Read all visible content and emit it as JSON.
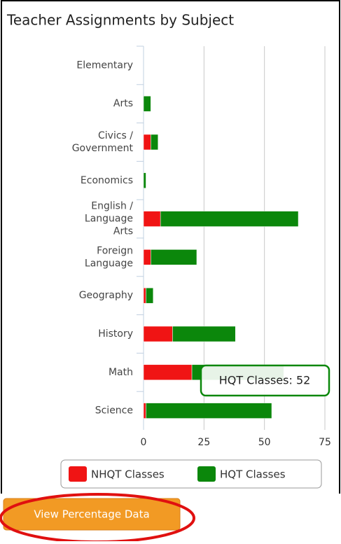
{
  "chart_data": {
    "type": "bar",
    "orientation": "horizontal",
    "stacked": true,
    "title": "Teacher Assignments by Subject",
    "categories": [
      "Elementary",
      "Arts",
      "Civics / Government",
      "Economics",
      "English / Language Arts",
      "Foreign Language",
      "Geography",
      "History",
      "Math",
      "Science"
    ],
    "series": [
      {
        "name": "NHQT Classes",
        "color": "#f01414",
        "values": [
          0,
          0,
          3,
          0,
          7,
          3,
          1,
          12,
          20,
          1
        ]
      },
      {
        "name": "HQT Classes",
        "color": "#0b870b",
        "values": [
          0,
          3,
          3,
          1,
          57,
          19,
          3,
          26,
          38,
          52
        ]
      }
    ],
    "xlim": [
      0,
      75
    ],
    "xticks": [
      0,
      25,
      50,
      75
    ],
    "grid": true,
    "legend": "bottom",
    "tooltip": "HQT Classes: 52"
  },
  "button": {
    "label": "View Percentage Data"
  }
}
